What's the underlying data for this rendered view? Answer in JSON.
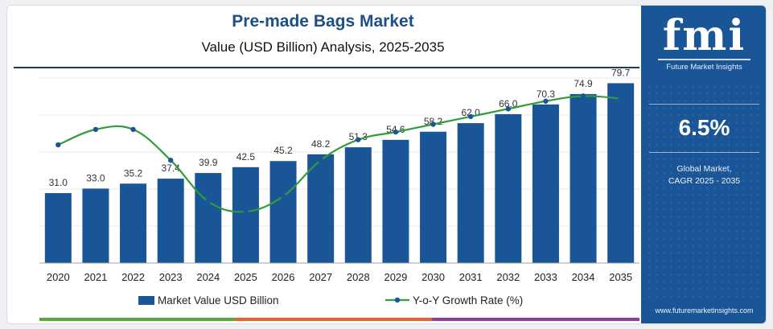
{
  "header": {
    "title": "Pre-made Bags Market",
    "subtitle": "Value (USD Billion) Analysis, 2025-2035"
  },
  "sidebar": {
    "logo_text": "fmi",
    "logo_tagline": "Future Market Insights",
    "cagr_value": "6.5%",
    "cagr_label_line1": "Global Market,",
    "cagr_label_line2": "CAGR 2025 - 2035",
    "website": "www.futuremarketinsights.com"
  },
  "colors": {
    "bar": "#1a5597",
    "line": "#2e9e3a",
    "marker": "#1a5597",
    "sidebar_bg": "#1a5597",
    "title": "#1c4f86",
    "bottom_stripe": [
      "#5aa83a",
      "#e8612c",
      "#8a3fa0",
      "#1a5597"
    ]
  },
  "chart_data": {
    "type": "bar",
    "categories": [
      "2020",
      "2021",
      "2022",
      "2023",
      "2024",
      "2025",
      "2026",
      "2027",
      "2028",
      "2029",
      "2030",
      "2031",
      "2032",
      "2033",
      "2034",
      "2035"
    ],
    "series": [
      {
        "name": "Market Value USD Billion",
        "type": "bar",
        "values": [
          31.0,
          33.0,
          35.2,
          37.4,
          39.9,
          42.5,
          45.2,
          48.2,
          51.3,
          54.6,
          58.2,
          62.0,
          66.0,
          70.3,
          74.9,
          79.7
        ],
        "labels": [
          "31.0",
          "33.0",
          "35.2",
          "37.4",
          "39.9",
          "42.5",
          "45.2",
          "48.2",
          "51.3",
          "54.6",
          "58.2",
          "62.0",
          "66.0",
          "70.3",
          "74.9",
          "79.7"
        ]
      },
      {
        "name": "Y-o-Y Growth Rate (%)",
        "type": "line",
        "values": [
          6.3,
          6.6,
          6.6,
          6.0,
          5.2,
          5.0,
          5.3,
          6.0,
          6.4,
          6.55,
          6.7,
          6.85,
          7.0,
          7.15,
          7.25,
          7.2
        ]
      }
    ],
    "bar_axis_range": [
      0,
      82
    ],
    "line_axis_range": [
      4.0,
      7.6
    ],
    "grid": "horizontal",
    "legend": "bottom-center"
  }
}
